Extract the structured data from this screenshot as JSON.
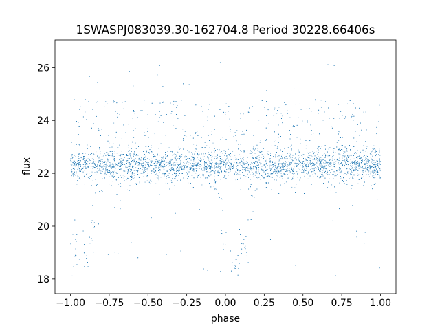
{
  "chart_data": {
    "type": "scatter",
    "title": "1SWASPJ083039.30-162704.8 Period 30228.66406s",
    "xlabel": "phase",
    "ylabel": "flux",
    "xlim": [
      -1.1,
      1.1
    ],
    "ylim": [
      17.45,
      27.05
    ],
    "x_ticks": [
      -1.0,
      -0.75,
      -0.5,
      -0.25,
      0.0,
      0.25,
      0.5,
      0.75,
      1.0
    ],
    "x_tick_labels": [
      "−1.00",
      "−0.75",
      "−0.50",
      "−0.25",
      "0.00",
      "0.25",
      "0.50",
      "0.75",
      "1.00"
    ],
    "y_ticks": [
      18,
      20,
      22,
      24,
      26
    ],
    "y_tick_labels": [
      "18",
      "20",
      "22",
      "24",
      "26"
    ],
    "grid": false,
    "point_color": "#1f77b4",
    "x_range": [
      -1.0,
      1.0
    ],
    "light_curve": {
      "median_flux": 22.3,
      "scatter_sigma": 0.28,
      "eclipses": [
        {
          "center_phase": 0.065,
          "min_flux": 18.8,
          "half_width": 0.16
        },
        {
          "center_phase": -0.935,
          "min_flux": 18.8,
          "half_width": 0.16
        }
      ]
    },
    "notes_visible": "Dense band of points near flux 22.3 across all phases with deep dips to about 18 near phase -0.9 and 0.1; sparse outliers up to about 26"
  }
}
